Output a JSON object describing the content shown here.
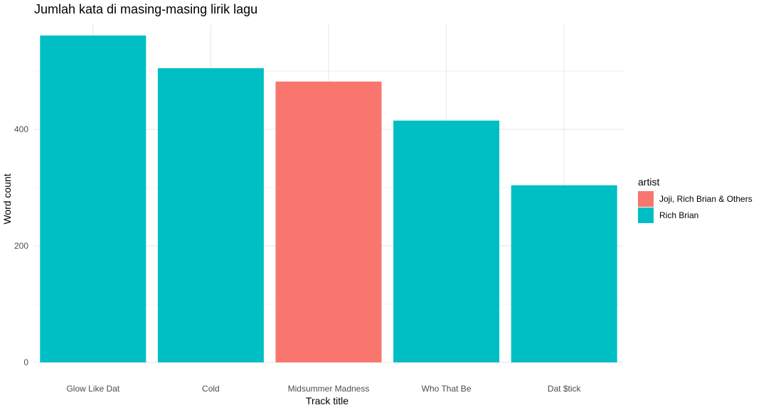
{
  "chart_data": {
    "type": "bar",
    "title": "Jumlah kata di masing-masing lirik lagu",
    "xlabel": "Track title",
    "ylabel": "Word count",
    "categories": [
      "Glow Like Dat",
      "Cold",
      "Midsummer Madness",
      "Who That Be",
      "Dat $tick"
    ],
    "values": [
      561,
      505,
      482,
      415,
      304
    ],
    "bar_artist": [
      "Rich Brian",
      "Rich Brian",
      "Joji, Rich Brian & Others",
      "Rich Brian",
      "Rich Brian"
    ],
    "yticks": [
      0,
      200,
      400
    ],
    "ylim": [
      0,
      590
    ],
    "grid": true,
    "legend": {
      "title": "artist",
      "position": "right",
      "entries": [
        {
          "label": "Joji, Rich Brian & Others",
          "color": "#F8766D"
        },
        {
          "label": "Rich Brian",
          "color": "#00BFC4"
        }
      ]
    }
  }
}
